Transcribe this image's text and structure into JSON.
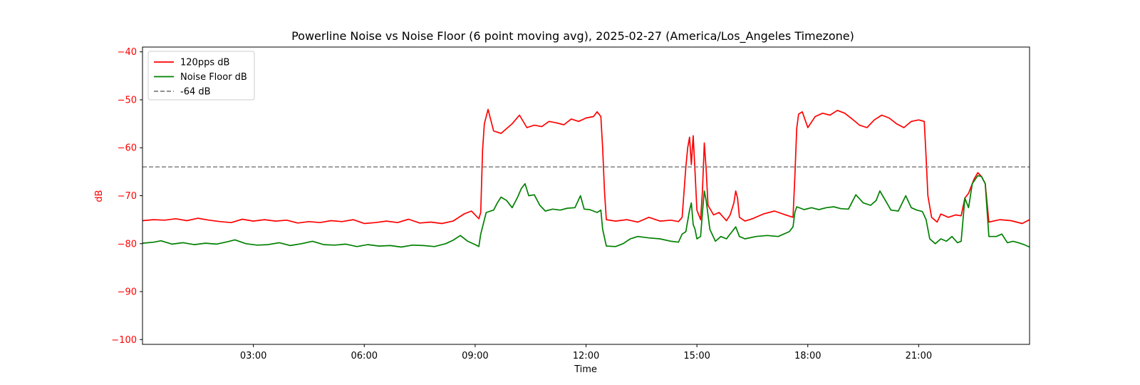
{
  "chart_data": {
    "type": "line",
    "title": "Powerline Noise vs Noise Floor (6 point moving avg), 2025-02-27 (America/Los_Angeles Timezone)",
    "xlabel": "Time",
    "ylabel": "dB",
    "xlim": [
      0,
      24
    ],
    "ylim": [
      -101,
      -39
    ],
    "xticks": [
      3,
      6,
      9,
      12,
      15,
      18,
      21
    ],
    "xtick_labels": [
      "03:00",
      "06:00",
      "09:00",
      "12:00",
      "15:00",
      "18:00",
      "21:00"
    ],
    "yticks": [
      -40,
      -50,
      -60,
      -70,
      -80,
      -90,
      -100
    ],
    "ytick_labels": [
      "−40",
      "−50",
      "−60",
      "−70",
      "−80",
      "−90",
      "−100"
    ],
    "grid": false,
    "legend_position": "top-left",
    "colors": {
      "red": "#ff0000",
      "green": "#008000",
      "gray": "#808080",
      "axis_label": "#ff0000"
    },
    "series": [
      {
        "name": "120pps dB",
        "color": "#ff0000",
        "style": "solid",
        "points": [
          [
            0.0,
            -75.2
          ],
          [
            0.3,
            -75.0
          ],
          [
            0.6,
            -75.1
          ],
          [
            0.9,
            -74.8
          ],
          [
            1.2,
            -75.2
          ],
          [
            1.5,
            -74.7
          ],
          [
            1.8,
            -75.1
          ],
          [
            2.1,
            -75.4
          ],
          [
            2.4,
            -75.6
          ],
          [
            2.7,
            -74.9
          ],
          [
            3.0,
            -75.3
          ],
          [
            3.3,
            -75.0
          ],
          [
            3.6,
            -75.3
          ],
          [
            3.9,
            -75.1
          ],
          [
            4.2,
            -75.7
          ],
          [
            4.5,
            -75.4
          ],
          [
            4.8,
            -75.6
          ],
          [
            5.1,
            -75.2
          ],
          [
            5.4,
            -75.4
          ],
          [
            5.7,
            -75.0
          ],
          [
            6.0,
            -75.8
          ],
          [
            6.3,
            -75.6
          ],
          [
            6.6,
            -75.3
          ],
          [
            6.9,
            -75.6
          ],
          [
            7.2,
            -74.9
          ],
          [
            7.5,
            -75.7
          ],
          [
            7.8,
            -75.5
          ],
          [
            8.1,
            -75.8
          ],
          [
            8.4,
            -75.3
          ],
          [
            8.7,
            -73.8
          ],
          [
            8.9,
            -73.2
          ],
          [
            9.1,
            -74.8
          ],
          [
            9.15,
            -73.5
          ],
          [
            9.2,
            -60.5
          ],
          [
            9.25,
            -55.0
          ],
          [
            9.35,
            -52.0
          ],
          [
            9.5,
            -56.5
          ],
          [
            9.7,
            -57.0
          ],
          [
            10.0,
            -55.0
          ],
          [
            10.2,
            -53.2
          ],
          [
            10.4,
            -55.8
          ],
          [
            10.6,
            -55.3
          ],
          [
            10.8,
            -55.6
          ],
          [
            11.0,
            -54.5
          ],
          [
            11.2,
            -54.8
          ],
          [
            11.4,
            -55.2
          ],
          [
            11.6,
            -54.0
          ],
          [
            11.8,
            -54.5
          ],
          [
            12.0,
            -53.8
          ],
          [
            12.2,
            -53.5
          ],
          [
            12.3,
            -52.5
          ],
          [
            12.4,
            -53.5
          ],
          [
            12.45,
            -60.0
          ],
          [
            12.5,
            -69.0
          ],
          [
            12.55,
            -75.0
          ],
          [
            12.8,
            -75.3
          ],
          [
            13.1,
            -75.0
          ],
          [
            13.4,
            -75.5
          ],
          [
            13.7,
            -74.5
          ],
          [
            14.0,
            -75.3
          ],
          [
            14.3,
            -75.1
          ],
          [
            14.5,
            -75.4
          ],
          [
            14.6,
            -74.5
          ],
          [
            14.7,
            -64.0
          ],
          [
            14.75,
            -60.0
          ],
          [
            14.8,
            -57.8
          ],
          [
            14.85,
            -63.5
          ],
          [
            14.9,
            -57.5
          ],
          [
            14.95,
            -65.0
          ],
          [
            15.0,
            -73.0
          ],
          [
            15.1,
            -75.0
          ],
          [
            15.15,
            -69.0
          ],
          [
            15.2,
            -59.0
          ],
          [
            15.25,
            -64.5
          ],
          [
            15.3,
            -72.0
          ],
          [
            15.45,
            -74.0
          ],
          [
            15.6,
            -73.5
          ],
          [
            15.8,
            -75.2
          ],
          [
            15.9,
            -74.0
          ],
          [
            16.0,
            -71.5
          ],
          [
            16.05,
            -69.0
          ],
          [
            16.1,
            -70.5
          ],
          [
            16.15,
            -74.5
          ],
          [
            16.3,
            -75.3
          ],
          [
            16.5,
            -74.8
          ],
          [
            16.8,
            -73.8
          ],
          [
            17.1,
            -73.2
          ],
          [
            17.4,
            -74.0
          ],
          [
            17.6,
            -74.5
          ],
          [
            17.65,
            -66.0
          ],
          [
            17.7,
            -56.0
          ],
          [
            17.75,
            -53.0
          ],
          [
            17.85,
            -52.5
          ],
          [
            18.0,
            -55.8
          ],
          [
            18.2,
            -53.5
          ],
          [
            18.4,
            -52.8
          ],
          [
            18.6,
            -53.2
          ],
          [
            18.8,
            -52.2
          ],
          [
            19.0,
            -52.8
          ],
          [
            19.2,
            -54.0
          ],
          [
            19.4,
            -55.3
          ],
          [
            19.6,
            -55.8
          ],
          [
            19.8,
            -54.2
          ],
          [
            20.0,
            -53.2
          ],
          [
            20.2,
            -53.8
          ],
          [
            20.4,
            -55.0
          ],
          [
            20.6,
            -55.8
          ],
          [
            20.8,
            -54.5
          ],
          [
            21.0,
            -54.2
          ],
          [
            21.15,
            -54.5
          ],
          [
            21.2,
            -62.0
          ],
          [
            21.25,
            -70.0
          ],
          [
            21.35,
            -74.5
          ],
          [
            21.5,
            -75.5
          ],
          [
            21.6,
            -73.8
          ],
          [
            21.8,
            -74.5
          ],
          [
            22.0,
            -74.0
          ],
          [
            22.15,
            -74.2
          ],
          [
            22.25,
            -70.5
          ],
          [
            22.35,
            -69.5
          ],
          [
            22.5,
            -66.5
          ],
          [
            22.6,
            -65.2
          ],
          [
            22.7,
            -66.0
          ],
          [
            22.8,
            -67.5
          ],
          [
            22.9,
            -75.5
          ],
          [
            23.2,
            -75.0
          ],
          [
            23.5,
            -75.2
          ],
          [
            23.8,
            -75.8
          ],
          [
            24.0,
            -75.0
          ]
        ]
      },
      {
        "name": "Noise Floor dB",
        "color": "#008000",
        "style": "solid",
        "points": [
          [
            0.0,
            -79.9
          ],
          [
            0.3,
            -79.7
          ],
          [
            0.5,
            -79.4
          ],
          [
            0.8,
            -80.1
          ],
          [
            1.1,
            -79.8
          ],
          [
            1.4,
            -80.2
          ],
          [
            1.7,
            -79.9
          ],
          [
            2.0,
            -80.1
          ],
          [
            2.3,
            -79.6
          ],
          [
            2.5,
            -79.2
          ],
          [
            2.8,
            -80.0
          ],
          [
            3.1,
            -80.3
          ],
          [
            3.4,
            -80.2
          ],
          [
            3.7,
            -79.8
          ],
          [
            4.0,
            -80.4
          ],
          [
            4.3,
            -80.0
          ],
          [
            4.6,
            -79.5
          ],
          [
            4.9,
            -80.2
          ],
          [
            5.2,
            -80.3
          ],
          [
            5.5,
            -80.1
          ],
          [
            5.8,
            -80.6
          ],
          [
            6.1,
            -80.2
          ],
          [
            6.4,
            -80.5
          ],
          [
            6.7,
            -80.4
          ],
          [
            7.0,
            -80.7
          ],
          [
            7.3,
            -80.3
          ],
          [
            7.6,
            -80.4
          ],
          [
            7.9,
            -80.6
          ],
          [
            8.2,
            -80.0
          ],
          [
            8.4,
            -79.3
          ],
          [
            8.6,
            -78.3
          ],
          [
            8.8,
            -79.5
          ],
          [
            9.0,
            -80.2
          ],
          [
            9.1,
            -80.6
          ],
          [
            9.15,
            -78.0
          ],
          [
            9.3,
            -73.5
          ],
          [
            9.5,
            -73.0
          ],
          [
            9.6,
            -71.5
          ],
          [
            9.7,
            -70.3
          ],
          [
            9.85,
            -71.0
          ],
          [
            10.0,
            -72.5
          ],
          [
            10.15,
            -70.3
          ],
          [
            10.25,
            -68.5
          ],
          [
            10.35,
            -67.5
          ],
          [
            10.45,
            -70.0
          ],
          [
            10.6,
            -69.8
          ],
          [
            10.75,
            -72.0
          ],
          [
            10.9,
            -73.2
          ],
          [
            11.1,
            -72.8
          ],
          [
            11.3,
            -73.0
          ],
          [
            11.5,
            -72.6
          ],
          [
            11.7,
            -72.5
          ],
          [
            11.85,
            -70.0
          ],
          [
            11.95,
            -72.8
          ],
          [
            12.1,
            -72.9
          ],
          [
            12.3,
            -73.5
          ],
          [
            12.4,
            -73.0
          ],
          [
            12.45,
            -77.0
          ],
          [
            12.55,
            -80.5
          ],
          [
            12.8,
            -80.6
          ],
          [
            13.0,
            -80.0
          ],
          [
            13.2,
            -79.0
          ],
          [
            13.4,
            -78.5
          ],
          [
            13.7,
            -78.8
          ],
          [
            14.0,
            -79.0
          ],
          [
            14.3,
            -79.5
          ],
          [
            14.5,
            -79.7
          ],
          [
            14.6,
            -78.0
          ],
          [
            14.7,
            -77.5
          ],
          [
            14.8,
            -73.0
          ],
          [
            14.85,
            -71.5
          ],
          [
            14.9,
            -76.0
          ],
          [
            14.95,
            -77.0
          ],
          [
            15.0,
            -79.0
          ],
          [
            15.1,
            -78.5
          ],
          [
            15.15,
            -73.5
          ],
          [
            15.2,
            -69.0
          ],
          [
            15.25,
            -71.0
          ],
          [
            15.35,
            -77.0
          ],
          [
            15.5,
            -79.5
          ],
          [
            15.65,
            -78.5
          ],
          [
            15.8,
            -79.0
          ],
          [
            15.95,
            -77.5
          ],
          [
            16.05,
            -76.5
          ],
          [
            16.15,
            -78.5
          ],
          [
            16.3,
            -79.0
          ],
          [
            16.6,
            -78.5
          ],
          [
            16.9,
            -78.3
          ],
          [
            17.2,
            -78.5
          ],
          [
            17.5,
            -77.5
          ],
          [
            17.6,
            -76.5
          ],
          [
            17.65,
            -73.5
          ],
          [
            17.7,
            -72.3
          ],
          [
            17.9,
            -72.9
          ],
          [
            18.1,
            -72.5
          ],
          [
            18.3,
            -72.9
          ],
          [
            18.5,
            -72.5
          ],
          [
            18.7,
            -72.3
          ],
          [
            18.9,
            -72.7
          ],
          [
            19.1,
            -72.8
          ],
          [
            19.3,
            -69.8
          ],
          [
            19.5,
            -71.5
          ],
          [
            19.7,
            -72.0
          ],
          [
            19.85,
            -71.0
          ],
          [
            19.95,
            -69.0
          ],
          [
            20.1,
            -71.0
          ],
          [
            20.25,
            -73.0
          ],
          [
            20.45,
            -73.2
          ],
          [
            20.65,
            -70.0
          ],
          [
            20.8,
            -72.5
          ],
          [
            20.95,
            -73.0
          ],
          [
            21.1,
            -73.3
          ],
          [
            21.2,
            -75.0
          ],
          [
            21.3,
            -79.0
          ],
          [
            21.45,
            -80.0
          ],
          [
            21.6,
            -79.0
          ],
          [
            21.75,
            -79.5
          ],
          [
            21.9,
            -78.5
          ],
          [
            22.05,
            -79.8
          ],
          [
            22.15,
            -79.5
          ],
          [
            22.25,
            -70.5
          ],
          [
            22.35,
            -72.5
          ],
          [
            22.45,
            -67.5
          ],
          [
            22.6,
            -65.8
          ],
          [
            22.7,
            -66.0
          ],
          [
            22.8,
            -67.5
          ],
          [
            22.9,
            -78.5
          ],
          [
            23.1,
            -78.5
          ],
          [
            23.25,
            -78.0
          ],
          [
            23.4,
            -79.8
          ],
          [
            23.55,
            -79.5
          ],
          [
            23.7,
            -79.8
          ],
          [
            23.85,
            -80.2
          ],
          [
            24.0,
            -80.7
          ]
        ]
      },
      {
        "name": "-64 dB",
        "color": "#808080",
        "style": "dashed",
        "points": [
          [
            0,
            -64
          ],
          [
            24,
            -64
          ]
        ]
      }
    ]
  }
}
